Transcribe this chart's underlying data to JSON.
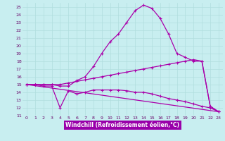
{
  "xlabel": "Windchill (Refroidissement éolien,°C)",
  "bg_color": "#c8eef0",
  "line_color": "#aa00aa",
  "grid_color": "#b0dede",
  "xlabel_bg": "#9900aa",
  "xlabel_fg": "#ffffff",
  "xlim": [
    -0.5,
    23.5
  ],
  "ylim": [
    11,
    25.5
  ],
  "xticks": [
    0,
    1,
    2,
    3,
    4,
    5,
    6,
    7,
    8,
    9,
    10,
    11,
    12,
    13,
    14,
    15,
    16,
    17,
    18,
    19,
    20,
    21,
    22,
    23
  ],
  "yticks": [
    11,
    12,
    13,
    14,
    15,
    16,
    17,
    18,
    19,
    20,
    21,
    22,
    23,
    24,
    25
  ],
  "curve1_x": [
    0,
    1,
    2,
    3,
    4,
    5,
    6,
    7,
    8,
    9,
    10,
    11,
    12,
    13,
    14,
    15,
    16,
    17,
    18,
    19,
    20,
    21,
    22,
    23
  ],
  "curve1_y": [
    15.0,
    15.0,
    15.0,
    15.0,
    14.8,
    14.8,
    15.5,
    16.0,
    17.3,
    19.0,
    20.5,
    21.5,
    23.0,
    24.5,
    25.2,
    24.8,
    23.5,
    21.5,
    19.0,
    18.5,
    18.0,
    18.0,
    12.2,
    11.5
  ],
  "curve2_x": [
    0,
    1,
    2,
    3,
    4,
    5,
    6,
    7,
    8,
    9,
    10,
    11,
    12,
    13,
    14,
    15,
    16,
    17,
    18,
    19,
    20,
    21,
    22,
    23
  ],
  "curve2_y": [
    15.0,
    15.0,
    14.8,
    14.8,
    12.0,
    14.2,
    13.8,
    14.0,
    14.3,
    14.3,
    14.3,
    14.3,
    14.2,
    14.0,
    14.0,
    13.8,
    13.5,
    13.2,
    13.0,
    12.8,
    12.5,
    12.2,
    12.0,
    11.5
  ],
  "curve3_x": [
    0,
    1,
    2,
    3,
    4,
    5,
    6,
    7,
    8,
    9,
    10,
    11,
    12,
    13,
    14,
    15,
    16,
    17,
    18,
    19,
    20,
    21,
    22,
    23
  ],
  "curve3_y": [
    15.0,
    15.0,
    15.0,
    15.0,
    15.0,
    15.2,
    15.4,
    15.6,
    15.8,
    16.0,
    16.2,
    16.4,
    16.6,
    16.8,
    17.0,
    17.2,
    17.4,
    17.6,
    17.8,
    18.0,
    18.2,
    18.0,
    12.2,
    11.5
  ],
  "curve4_x": [
    0,
    23
  ],
  "curve4_y": [
    15.0,
    11.5
  ]
}
